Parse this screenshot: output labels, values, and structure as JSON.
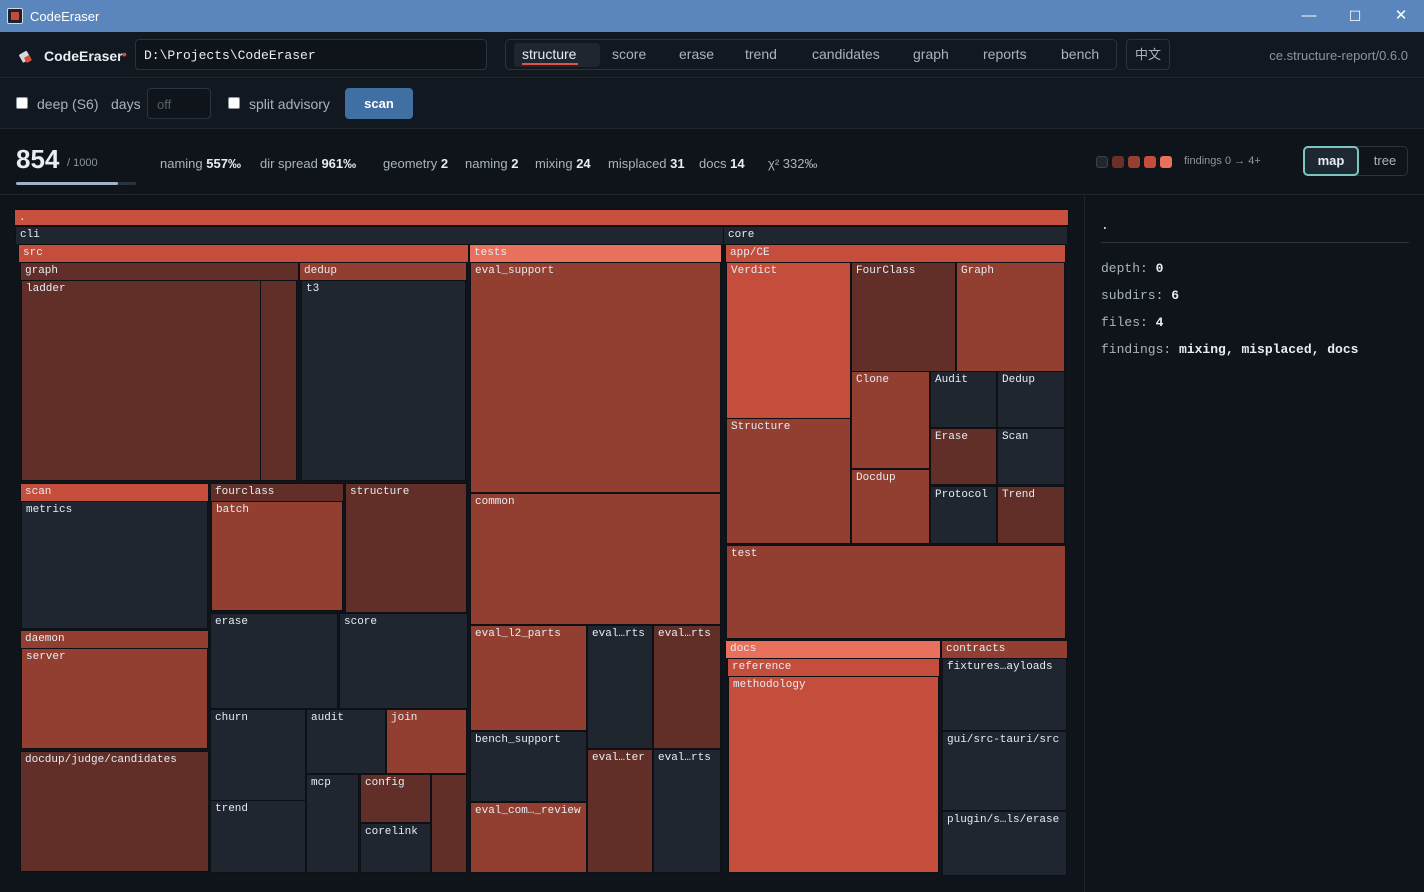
{
  "window": {
    "title": "CodeEraser",
    "controls": [
      "—",
      "☐",
      "✕"
    ]
  },
  "header": {
    "brand": "CodeEraser",
    "path": "D:\\Projects\\CodeEraser",
    "tabs": [
      {
        "label": "structure",
        "active": true
      },
      {
        "label": "score",
        "active": false
      },
      {
        "label": "erase",
        "active": false
      },
      {
        "label": "trend",
        "active": false
      },
      {
        "label": "candidates",
        "active": false
      },
      {
        "label": "graph",
        "active": false
      },
      {
        "label": "reports",
        "active": false
      },
      {
        "label": "bench",
        "active": false
      }
    ],
    "lang_button": "中文",
    "version": "ce.structure-report/0.6.0"
  },
  "controls": {
    "deep_label": "deep (S6)",
    "deep_checked": false,
    "days_label": "days",
    "days_placeholder": "off",
    "split_label": "split advisory",
    "split_checked": false,
    "scan_button": "scan"
  },
  "stats": {
    "score": "854",
    "score_max": "/ 1000",
    "score_fraction": 0.854,
    "metrics": [
      {
        "label": "naming",
        "value": "557‰"
      },
      {
        "label": "dir spread",
        "value": "961‰"
      },
      {
        "label": "geometry",
        "value": "2"
      },
      {
        "label": "naming",
        "value": "2"
      },
      {
        "label": "mixing",
        "value": "24"
      },
      {
        "label": "misplaced",
        "value": "31"
      },
      {
        "label": "docs",
        "value": "14"
      }
    ],
    "chi_label": "χ²",
    "chi_value": "332‰",
    "legend_colors": [
      "#1f2630",
      "#6b3129",
      "#96412f",
      "#c54d3c",
      "#e8705c"
    ],
    "legend_label": "findings 0 → 4+",
    "view_map": "map",
    "view_tree": "tree"
  },
  "treemap": {
    "colors": {
      "0": "#1f2630",
      "1": "#612f28",
      "2": "#923f31",
      "3": "#c54d3c",
      "4": "#e8705c",
      "root": "#c8503f"
    },
    "nodes": [
      {
        "label": ".",
        "lvl": "root"
      },
      {
        "label": "cli",
        "lvl": "0"
      },
      {
        "label": "src",
        "lvl": "3"
      },
      {
        "label": "graph",
        "lvl": "1"
      },
      {
        "label": "ladder",
        "lvl": "1"
      },
      {
        "label": "",
        "lvl": "1"
      },
      {
        "label": "dedup",
        "lvl": "2"
      },
      {
        "label": "t3",
        "lvl": "0"
      },
      {
        "label": "scan",
        "lvl": "3"
      },
      {
        "label": "metrics",
        "lvl": "0"
      },
      {
        "label": "fourclass",
        "lvl": "1"
      },
      {
        "label": "batch",
        "lvl": "2"
      },
      {
        "label": "structure",
        "lvl": "1"
      },
      {
        "label": "daemon",
        "lvl": "2"
      },
      {
        "label": "server",
        "lvl": "2"
      },
      {
        "label": "erase",
        "lvl": "0"
      },
      {
        "label": "score",
        "lvl": "0"
      },
      {
        "label": "docdup/judge/candidates",
        "lvl": "1"
      },
      {
        "label": "churn",
        "lvl": "0"
      },
      {
        "label": "audit",
        "lvl": "0"
      },
      {
        "label": "join",
        "lvl": "2"
      },
      {
        "label": "trend",
        "lvl": "0"
      },
      {
        "label": "mcp",
        "lvl": "0"
      },
      {
        "label": "config",
        "lvl": "1"
      },
      {
        "label": "",
        "lvl": "1"
      },
      {
        "label": "corelink",
        "lvl": "0"
      },
      {
        "label": "tests",
        "lvl": "4"
      },
      {
        "label": "eval_support",
        "lvl": "2"
      },
      {
        "label": "common",
        "lvl": "2"
      },
      {
        "label": "eval_l2_parts",
        "lvl": "2"
      },
      {
        "label": "eval…rts",
        "lvl": "0"
      },
      {
        "label": "eval…rts",
        "lvl": "1"
      },
      {
        "label": "bench_support",
        "lvl": "0"
      },
      {
        "label": "eval…ter",
        "lvl": "1"
      },
      {
        "label": "eval…rts",
        "lvl": "0"
      },
      {
        "label": "eval_com…_review",
        "lvl": "2"
      },
      {
        "label": "core",
        "lvl": "0"
      },
      {
        "label": "app/CE",
        "lvl": "3"
      },
      {
        "label": "Verdict",
        "lvl": "3"
      },
      {
        "label": "FourClass",
        "lvl": "1"
      },
      {
        "label": "Graph",
        "lvl": "2"
      },
      {
        "label": "Clone",
        "lvl": "2"
      },
      {
        "label": "Audit",
        "lvl": "0"
      },
      {
        "label": "Dedup",
        "lvl": "0"
      },
      {
        "label": "Structure",
        "lvl": "2"
      },
      {
        "label": "Erase",
        "lvl": "1"
      },
      {
        "label": "Scan",
        "lvl": "0"
      },
      {
        "label": "Docdup",
        "lvl": "2"
      },
      {
        "label": "Protocol",
        "lvl": "0"
      },
      {
        "label": "Trend",
        "lvl": "1"
      },
      {
        "label": "test",
        "lvl": "2"
      },
      {
        "label": "docs",
        "lvl": "4"
      },
      {
        "label": "reference",
        "lvl": "3"
      },
      {
        "label": "methodology",
        "lvl": "3"
      },
      {
        "label": "contracts",
        "lvl": "2"
      },
      {
        "label": "fixtures…ayloads",
        "lvl": "0"
      },
      {
        "label": "gui/src-tauri/src",
        "lvl": "0"
      },
      {
        "label": "plugin/s…ls/erase",
        "lvl": "0"
      }
    ]
  },
  "sidebar": {
    "title": ".",
    "rows": [
      {
        "key": "depth:",
        "value": "0"
      },
      {
        "key": "subdirs:",
        "value": "6"
      },
      {
        "key": "files:",
        "value": "4"
      },
      {
        "key": "findings:",
        "value": "mixing, misplaced, docs"
      }
    ]
  }
}
